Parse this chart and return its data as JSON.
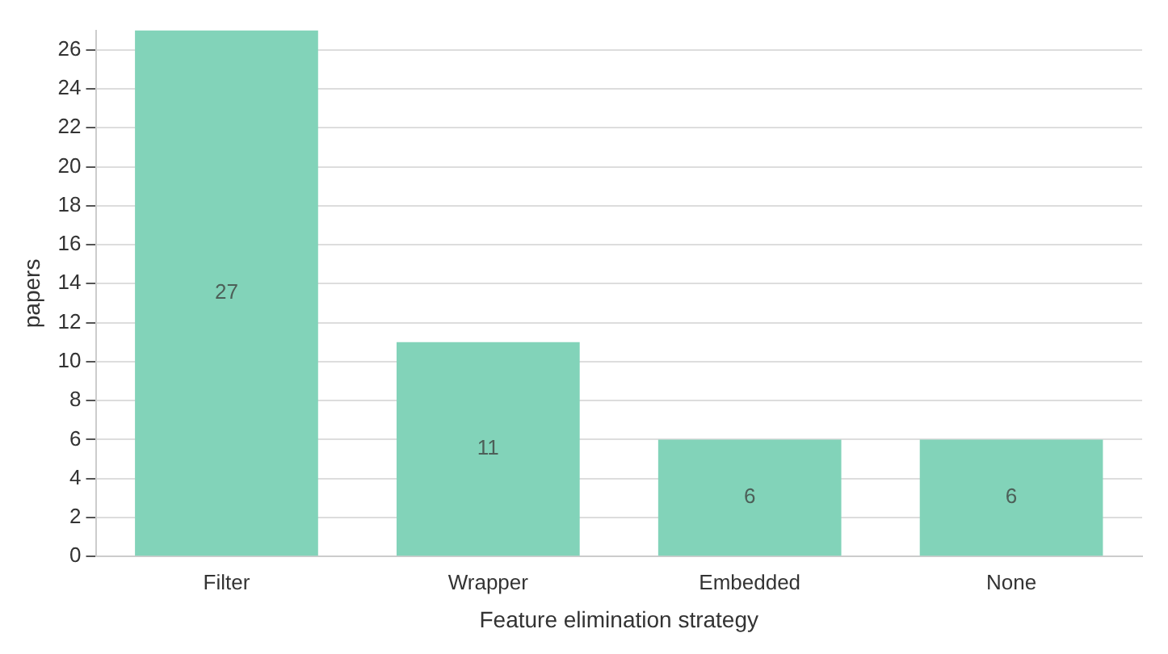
{
  "chart_data": {
    "type": "bar",
    "xlabel": "Feature elimination strategy",
    "ylabel": "papers",
    "categories": [
      "Filter",
      "Wrapper",
      "Embedded",
      "None"
    ],
    "values": [
      27,
      11,
      6,
      6
    ],
    "color": "#82d3b9",
    "ylim": [
      0,
      27
    ],
    "yticks": [
      0,
      2,
      4,
      6,
      8,
      10,
      12,
      14,
      16,
      18,
      20,
      22,
      24,
      26
    ],
    "grid": "y",
    "data_labels": true,
    "legend": false
  }
}
